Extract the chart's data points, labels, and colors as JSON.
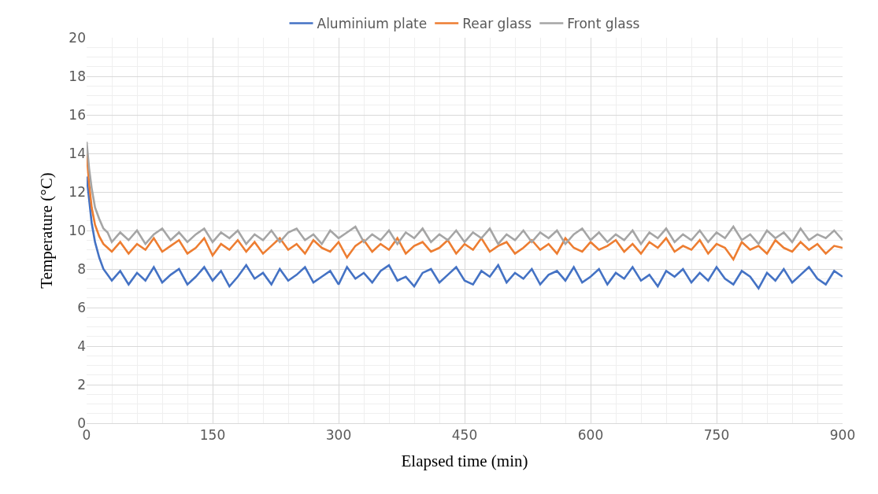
{
  "chart_data": {
    "type": "line",
    "xlabel": "Elapsed time (min)",
    "ylabel": "Temperature (°C)",
    "x": [
      0,
      3,
      6,
      10,
      15,
      20,
      25,
      30,
      40,
      50,
      60,
      70,
      80,
      90,
      100,
      110,
      120,
      130,
      140,
      150,
      160,
      170,
      180,
      190,
      200,
      210,
      220,
      230,
      240,
      250,
      260,
      270,
      280,
      290,
      300,
      310,
      320,
      330,
      340,
      350,
      360,
      370,
      380,
      390,
      400,
      410,
      420,
      430,
      440,
      450,
      460,
      470,
      480,
      490,
      500,
      510,
      520,
      530,
      540,
      550,
      560,
      570,
      580,
      590,
      600,
      610,
      620,
      630,
      640,
      650,
      660,
      670,
      680,
      690,
      700,
      710,
      720,
      730,
      740,
      750,
      760,
      770,
      780,
      790,
      800,
      810,
      820,
      830,
      840,
      850,
      860,
      870,
      880,
      890,
      900
    ],
    "series": [
      {
        "name": "Aluminium plate",
        "color": "#4472c4",
        "values": [
          12.8,
          11.6,
          10.4,
          9.4,
          8.6,
          8.0,
          7.7,
          7.4,
          7.9,
          7.2,
          7.8,
          7.4,
          8.1,
          7.3,
          7.7,
          8.0,
          7.2,
          7.6,
          8.1,
          7.4,
          7.9,
          7.1,
          7.6,
          8.2,
          7.5,
          7.8,
          7.2,
          8.0,
          7.4,
          7.7,
          8.1,
          7.3,
          7.6,
          7.9,
          7.2,
          8.1,
          7.5,
          7.8,
          7.3,
          7.9,
          8.2,
          7.4,
          7.6,
          7.1,
          7.8,
          8.0,
          7.3,
          7.7,
          8.1,
          7.4,
          7.2,
          7.9,
          7.6,
          8.2,
          7.3,
          7.8,
          7.5,
          8.0,
          7.2,
          7.7,
          7.9,
          7.4,
          8.1,
          7.3,
          7.6,
          8.0,
          7.2,
          7.8,
          7.5,
          8.1,
          7.4,
          7.7,
          7.1,
          7.9,
          7.6,
          8.0,
          7.3,
          7.8,
          7.4,
          8.1,
          7.5,
          7.2,
          7.9,
          7.6,
          7.0,
          7.8,
          7.4,
          8.0,
          7.3,
          7.7,
          8.1,
          7.5,
          7.2,
          7.9,
          7.6
        ]
      },
      {
        "name": "Rear glass",
        "color": "#ed7d31",
        "values": [
          14.0,
          12.4,
          11.2,
          10.3,
          9.7,
          9.3,
          9.1,
          8.9,
          9.4,
          8.8,
          9.3,
          9.0,
          9.6,
          8.9,
          9.2,
          9.5,
          8.8,
          9.1,
          9.6,
          8.7,
          9.3,
          9.0,
          9.5,
          8.9,
          9.4,
          8.8,
          9.2,
          9.6,
          9.0,
          9.3,
          8.8,
          9.5,
          9.1,
          8.9,
          9.4,
          8.6,
          9.2,
          9.5,
          8.9,
          9.3,
          9.0,
          9.6,
          8.8,
          9.2,
          9.4,
          8.9,
          9.1,
          9.5,
          8.8,
          9.3,
          9.0,
          9.6,
          8.9,
          9.2,
          9.4,
          8.8,
          9.1,
          9.5,
          9.0,
          9.3,
          8.8,
          9.6,
          9.1,
          8.9,
          9.4,
          9.0,
          9.2,
          9.5,
          8.9,
          9.3,
          8.8,
          9.4,
          9.1,
          9.6,
          8.9,
          9.2,
          9.0,
          9.5,
          8.8,
          9.3,
          9.1,
          8.5,
          9.4,
          9.0,
          9.2,
          8.8,
          9.5,
          9.1,
          8.9,
          9.4,
          9.0,
          9.3,
          8.8,
          9.2,
          9.1
        ]
      },
      {
        "name": "Front glass",
        "color": "#a5a5a5",
        "values": [
          14.6,
          13.2,
          12.2,
          11.2,
          10.6,
          10.1,
          9.9,
          9.4,
          9.9,
          9.5,
          10.0,
          9.3,
          9.8,
          10.1,
          9.5,
          9.9,
          9.4,
          9.8,
          10.1,
          9.4,
          9.9,
          9.6,
          10.0,
          9.3,
          9.8,
          9.5,
          10.0,
          9.4,
          9.9,
          10.1,
          9.5,
          9.8,
          9.3,
          10.0,
          9.6,
          9.9,
          10.2,
          9.4,
          9.8,
          9.5,
          10.0,
          9.3,
          9.9,
          9.6,
          10.1,
          9.4,
          9.8,
          9.5,
          10.0,
          9.4,
          9.9,
          9.6,
          10.1,
          9.3,
          9.8,
          9.5,
          10.0,
          9.4,
          9.9,
          9.6,
          10.0,
          9.3,
          9.8,
          10.1,
          9.5,
          9.9,
          9.4,
          9.8,
          9.5,
          10.0,
          9.3,
          9.9,
          9.6,
          10.1,
          9.4,
          9.8,
          9.5,
          10.0,
          9.4,
          9.9,
          9.6,
          10.2,
          9.5,
          9.8,
          9.3,
          10.0,
          9.6,
          9.9,
          9.4,
          10.1,
          9.5,
          9.8,
          9.6,
          10.0,
          9.5
        ]
      }
    ],
    "xlim": [
      0,
      900
    ],
    "xticks": [
      0,
      150,
      300,
      450,
      600,
      750,
      900
    ],
    "ylim": [
      0,
      20
    ],
    "yticks": [
      0,
      2,
      4,
      6,
      8,
      10,
      12,
      14,
      16,
      18,
      20
    ],
    "grid": true,
    "legend": "top",
    "marker": "none",
    "line_style": "solid"
  }
}
